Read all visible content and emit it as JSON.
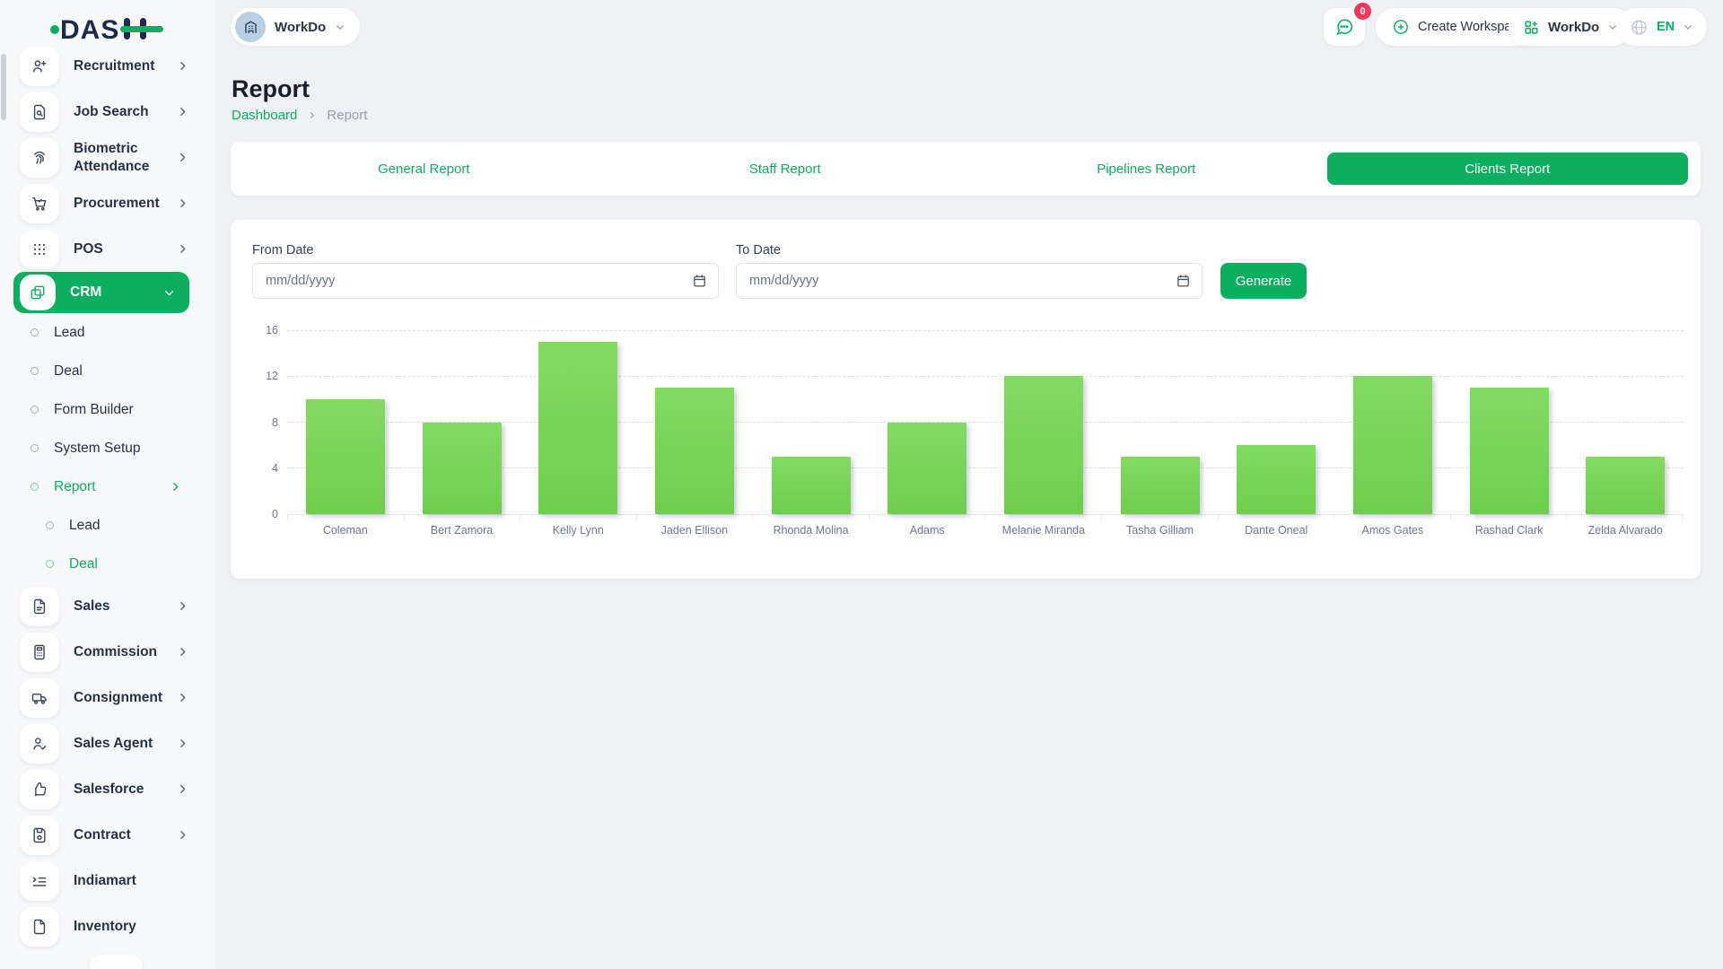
{
  "brand": {
    "name": "DASH",
    "accent_color": "#0CAF60",
    "navy_color": "#1e2a4a"
  },
  "header": {
    "workspace_switcher_label": "WorkDo",
    "messages_badge_count": "0",
    "create_workspace_label": "Create Workspace",
    "apps_menu_label": "WorkDo",
    "language_label": "EN"
  },
  "sidebar": {
    "items": [
      {
        "label": "Recruitment",
        "icon": "user-plus-icon",
        "level": 0,
        "expandable": true
      },
      {
        "label": "Job Search",
        "icon": "document-search-icon",
        "level": 0,
        "expandable": true
      },
      {
        "label": "Biometric Attendance",
        "icon": "fingerprint-icon",
        "level": 0,
        "expandable": true
      },
      {
        "label": "Procurement",
        "icon": "cart-icon",
        "level": 0,
        "expandable": true
      },
      {
        "label": "POS",
        "icon": "grid-dots-icon",
        "level": 0,
        "expandable": true
      },
      {
        "label": "CRM",
        "icon": "copy-squares-icon",
        "level": 0,
        "expandable": true,
        "expanded": true,
        "active": true
      },
      {
        "label": "Lead",
        "level": 1
      },
      {
        "label": "Deal",
        "level": 1
      },
      {
        "label": "Form Builder",
        "level": 1
      },
      {
        "label": "System Setup",
        "level": 1
      },
      {
        "label": "Report",
        "level": 1,
        "expandable": true,
        "highlighted": true
      },
      {
        "label": "Lead",
        "level": 2
      },
      {
        "label": "Deal",
        "level": 2,
        "highlighted": true
      },
      {
        "label": "Sales",
        "icon": "file-lines-icon",
        "level": 0,
        "expandable": true
      },
      {
        "label": "Commission",
        "icon": "calculator-icon",
        "level": 0,
        "expandable": true
      },
      {
        "label": "Consignment",
        "icon": "truck-icon",
        "level": 0,
        "expandable": true
      },
      {
        "label": "Sales Agent",
        "icon": "user-check-icon",
        "level": 0,
        "expandable": true
      },
      {
        "label": "Salesforce",
        "icon": "thumbs-up-icon",
        "level": 0,
        "expandable": true
      },
      {
        "label": "Contract",
        "icon": "floppy-icon",
        "level": 0,
        "expandable": true
      },
      {
        "label": "Indiamart",
        "icon": "list-arrow-icon",
        "level": 0,
        "expandable": false
      },
      {
        "label": "Inventory",
        "icon": "file-icon",
        "level": 0,
        "expandable": false
      }
    ]
  },
  "page": {
    "title": "Report",
    "breadcrumb": [
      "Dashboard",
      "Report"
    ]
  },
  "tabs": [
    {
      "label": "General Report",
      "active": false
    },
    {
      "label": "Staff Report",
      "active": false
    },
    {
      "label": "Pipelines Report",
      "active": false
    },
    {
      "label": "Clients Report",
      "active": true
    }
  ],
  "filter": {
    "from_date_label": "From Date",
    "to_date_label": "To Date",
    "date_placeholder": "mm/dd/yyyy",
    "generate_label": "Generate"
  },
  "chart_data": {
    "type": "bar",
    "title": "",
    "xlabel": "",
    "ylabel": "",
    "categories": [
      "Coleman",
      "Bert Zamora",
      "Kelly Lynn",
      "Jaden Ellison",
      "Rhonda Molina",
      "Adams",
      "Melanie Miranda",
      "Tasha Gilliam",
      "Dante Oneal",
      "Amos Gates",
      "Rashad Clark",
      "Zelda Alvarado"
    ],
    "values": [
      10,
      8,
      15,
      11,
      5,
      8,
      12,
      5,
      6,
      12,
      11,
      5
    ],
    "ylim": [
      0,
      16
    ],
    "yticks": [
      0,
      4,
      8,
      12,
      16
    ],
    "grid": "horizontal-dashed",
    "legend": "none",
    "bar_color": "#76d653"
  }
}
